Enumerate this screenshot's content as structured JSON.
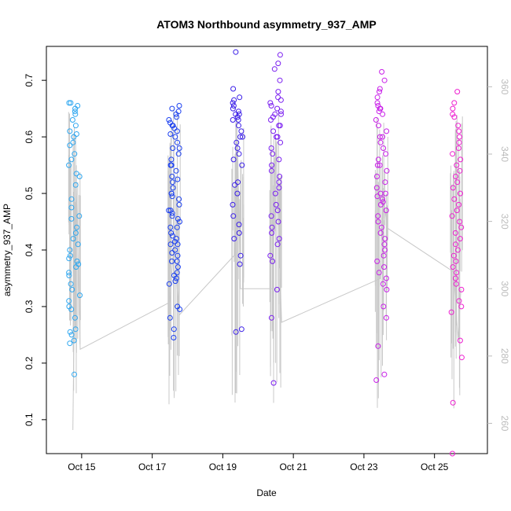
{
  "chart_data": {
    "type": "scatter",
    "title": "ATOM3 Northbound asymmetry_937_AMP",
    "xlabel": "Date",
    "ylabel": "asymmetry_937_AMP",
    "xlim": [
      "2023-10-14 00:00",
      "2023-10-26 12:00"
    ],
    "ylim": [
      0.04,
      0.76
    ],
    "y2lim": [
      251,
      372
    ],
    "x_ticks": [
      {
        "date": "2023-10-15",
        "label": "Oct 15"
      },
      {
        "date": "2023-10-17",
        "label": "Oct 17"
      },
      {
        "date": "2023-10-19",
        "label": "Oct 19"
      },
      {
        "date": "2023-10-21",
        "label": "Oct 21"
      },
      {
        "date": "2023-10-23",
        "label": "Oct 23"
      },
      {
        "date": "2023-10-25",
        "label": "Oct 25"
      }
    ],
    "y_ticks": [
      0.1,
      0.2,
      0.3,
      0.4,
      0.5,
      0.6,
      0.7
    ],
    "y2_ticks": [
      260,
      280,
      300,
      320,
      340,
      360
    ],
    "grid": false,
    "points_color_scale": [
      "#2ea7f0",
      "#1a3ff0",
      "#3a1ee8",
      "#7a1ef0",
      "#c81ee8",
      "#ee1ed0"
    ],
    "secondary_line_color": "#c8c8c8",
    "clusters": [
      {
        "date": "2023-10-14 19:00",
        "color": "#2ea7f0",
        "values": [
          0.66,
          0.655,
          0.65,
          0.64,
          0.63,
          0.62,
          0.61,
          0.6,
          0.59,
          0.585,
          0.57,
          0.56,
          0.55,
          0.53,
          0.515,
          0.49,
          0.475,
          0.46,
          0.455,
          0.44,
          0.43,
          0.42,
          0.41,
          0.4,
          0.39,
          0.385,
          0.38,
          0.375,
          0.37,
          0.36,
          0.355,
          0.34,
          0.33,
          0.32,
          0.31,
          0.3,
          0.295,
          0.28,
          0.26,
          0.255,
          0.25,
          0.24,
          0.235,
          0.18,
          0.66,
          0.645,
          0.605,
          0.535
        ]
      },
      {
        "date": "2023-10-17 15:00",
        "color": "#1a3ff0",
        "values": [
          0.655,
          0.65,
          0.645,
          0.64,
          0.635,
          0.63,
          0.625,
          0.62,
          0.615,
          0.61,
          0.6,
          0.59,
          0.58,
          0.57,
          0.56,
          0.55,
          0.54,
          0.53,
          0.525,
          0.52,
          0.51,
          0.5,
          0.495,
          0.49,
          0.48,
          0.47,
          0.465,
          0.46,
          0.455,
          0.45,
          0.44,
          0.43,
          0.425,
          0.42,
          0.415,
          0.41,
          0.4,
          0.395,
          0.39,
          0.38,
          0.37,
          0.36,
          0.35,
          0.345,
          0.34,
          0.3,
          0.295,
          0.28,
          0.26,
          0.245,
          0.62,
          0.605,
          0.58,
          0.55,
          0.5,
          0.47,
          0.44,
          0.41,
          0.38,
          0.355
        ]
      },
      {
        "date": "2023-10-19 10:00",
        "color": "#3a1ee8",
        "values": [
          0.75,
          0.685,
          0.67,
          0.665,
          0.66,
          0.655,
          0.65,
          0.645,
          0.64,
          0.635,
          0.63,
          0.62,
          0.61,
          0.6,
          0.59,
          0.58,
          0.57,
          0.56,
          0.55,
          0.52,
          0.515,
          0.5,
          0.48,
          0.46,
          0.445,
          0.43,
          0.42,
          0.39,
          0.375,
          0.26,
          0.255,
          0.64,
          0.63,
          0.6
        ]
      },
      {
        "date": "2023-10-20 12:00",
        "color": "#7a1ef0",
        "values": [
          0.745,
          0.73,
          0.72,
          0.7,
          0.68,
          0.67,
          0.665,
          0.66,
          0.655,
          0.65,
          0.645,
          0.64,
          0.635,
          0.63,
          0.62,
          0.61,
          0.6,
          0.59,
          0.58,
          0.57,
          0.56,
          0.55,
          0.54,
          0.53,
          0.52,
          0.51,
          0.5,
          0.48,
          0.47,
          0.46,
          0.45,
          0.44,
          0.43,
          0.42,
          0.41,
          0.39,
          0.38,
          0.33,
          0.28,
          0.165,
          0.64,
          0.62,
          0.6
        ]
      },
      {
        "date": "2023-10-23 12:00",
        "color": "#c81ee8",
        "values": [
          0.715,
          0.7,
          0.685,
          0.68,
          0.67,
          0.66,
          0.655,
          0.65,
          0.645,
          0.64,
          0.63,
          0.62,
          0.61,
          0.6,
          0.59,
          0.58,
          0.57,
          0.56,
          0.55,
          0.54,
          0.53,
          0.52,
          0.51,
          0.5,
          0.495,
          0.49,
          0.485,
          0.48,
          0.47,
          0.46,
          0.45,
          0.44,
          0.43,
          0.42,
          0.41,
          0.4,
          0.39,
          0.38,
          0.37,
          0.36,
          0.35,
          0.34,
          0.33,
          0.3,
          0.28,
          0.23,
          0.18,
          0.17,
          0.65,
          0.6,
          0.55,
          0.5
        ]
      },
      {
        "date": "2023-10-25 15:00",
        "color": "#ee1ed0",
        "values": [
          0.68,
          0.66,
          0.65,
          0.64,
          0.635,
          0.62,
          0.61,
          0.6,
          0.59,
          0.58,
          0.57,
          0.56,
          0.55,
          0.54,
          0.53,
          0.52,
          0.51,
          0.5,
          0.49,
          0.48,
          0.47,
          0.46,
          0.45,
          0.44,
          0.43,
          0.42,
          0.41,
          0.4,
          0.39,
          0.38,
          0.37,
          0.36,
          0.35,
          0.34,
          0.33,
          0.31,
          0.3,
          0.29,
          0.24,
          0.21,
          0.13,
          0.04
        ]
      }
    ],
    "secondary_series": [
      {
        "date": "2023-10-14 18:00",
        "value": 258
      },
      {
        "date": "2023-10-14 20:00",
        "value": 336
      },
      {
        "date": "2023-10-14 23:00",
        "value": 282
      },
      {
        "date": "2023-10-17 12:00",
        "value": 296
      },
      {
        "date": "2023-10-17 15:00",
        "value": 316
      },
      {
        "date": "2023-10-17 18:00",
        "value": 292
      },
      {
        "date": "2023-10-19 08:00",
        "value": 310
      },
      {
        "date": "2023-10-19 10:00",
        "value": 344
      },
      {
        "date": "2023-10-19 12:00",
        "value": 300
      },
      {
        "date": "2023-10-20 10:00",
        "value": 300
      },
      {
        "date": "2023-10-20 12:00",
        "value": 345
      },
      {
        "date": "2023-10-20 16:00",
        "value": 290
      },
      {
        "date": "2023-10-23 11:00",
        "value": 303
      },
      {
        "date": "2023-10-23 13:00",
        "value": 328
      },
      {
        "date": "2023-10-23 16:00",
        "value": 318
      },
      {
        "date": "2023-10-25 13:00",
        "value": 305
      },
      {
        "date": "2023-10-25 16:00",
        "value": 285
      },
      {
        "date": "2023-10-25 18:00",
        "value": 300
      }
    ]
  }
}
